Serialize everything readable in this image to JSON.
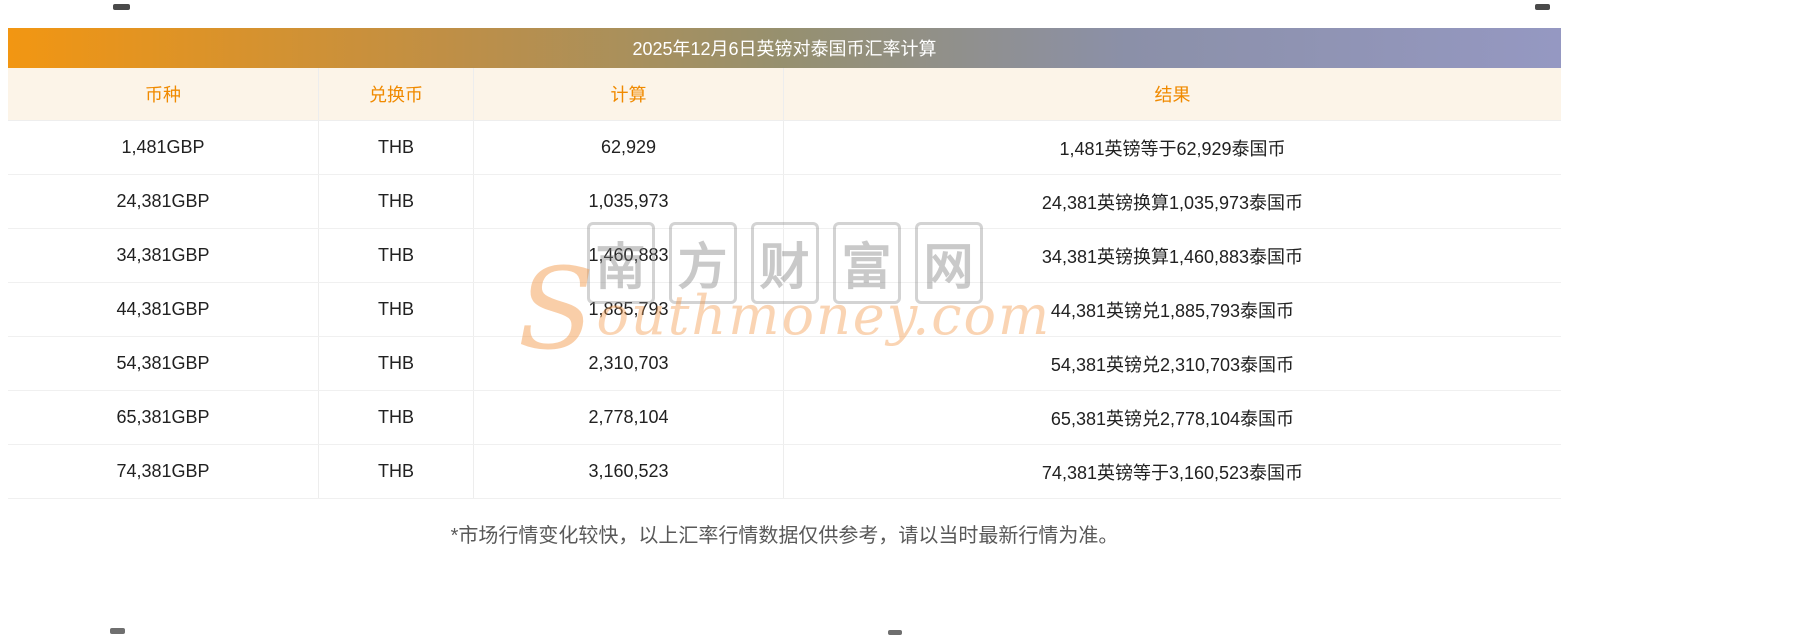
{
  "page": {
    "title": "2025年12月6日英镑对泰国币汇率计算",
    "footnote": "*市场行情变化较快，以上汇率行情数据仅供参考，请以当时最新行情为准。"
  },
  "table": {
    "headers": [
      "币种",
      "兑换币",
      "计算",
      "结果"
    ],
    "rows": [
      [
        "1,481GBP",
        "THB",
        "62,929",
        "1,481英镑等于62,929泰国币"
      ],
      [
        "24,381GBP",
        "THB",
        "1,035,973",
        "24,381英镑换算1,035,973泰国币"
      ],
      [
        "34,381GBP",
        "THB",
        "1,460,883",
        "34,381英镑换算1,460,883泰国币"
      ],
      [
        "44,381GBP",
        "THB",
        "1,885,793",
        "44,381英镑兑1,885,793泰国币"
      ],
      [
        "54,381GBP",
        "THB",
        "2,310,703",
        "54,381英镑兑2,310,703泰国币"
      ],
      [
        "65,381GBP",
        "THB",
        "2,778,104",
        "65,381英镑兑2,778,104泰国币"
      ],
      [
        "74,381GBP",
        "THB",
        "3,160,523",
        "74,381英镑等于3,160,523泰国币"
      ]
    ]
  },
  "watermark": {
    "cn": "南方财富网",
    "en": "Southmoney.com"
  },
  "colors": {
    "accent_orange": "#f08a00",
    "title_gradient_left": "#f29612",
    "title_gradient_right": "#9598c2",
    "header_bg": "#fcf4e8",
    "watermark_orange": "#f2994a",
    "watermark_gray": "#c9c9c9"
  }
}
